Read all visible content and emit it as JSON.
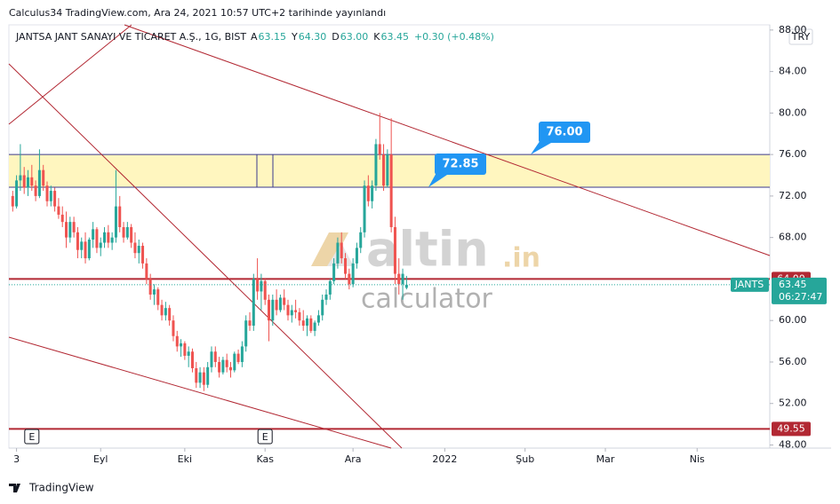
{
  "header": "Calculus34 TradingView.com, Ara 24, 2021 10:57 UTC+2 tarihinde yayınlandı",
  "footer": "TradingView",
  "chart_data": {
    "type": "candlestick",
    "legend": {
      "symbol": "JANTSA JANT SANAYI VE TICARET A.Ş., 1G, BIST",
      "open_label": "A",
      "open": "63.15",
      "high_label": "Y",
      "high": "64.30",
      "low_label": "D",
      "low": "63.00",
      "close_label": "K",
      "close": "63.45",
      "change": "+0.30 (+0.48%)"
    },
    "currency": "TRY",
    "up_color": "#26a69a",
    "down_color": "#ef5350",
    "ylim": [
      47.7,
      88.5
    ],
    "yticks": [
      {
        "value": 88,
        "label": "88.00"
      },
      {
        "value": 84,
        "label": "84.00"
      },
      {
        "value": 80,
        "label": "80.00"
      },
      {
        "value": 76,
        "label": "76.00"
      },
      {
        "value": 72,
        "label": "72.00"
      },
      {
        "value": 68,
        "label": "68.00"
      },
      {
        "value": 60,
        "label": "60.00"
      },
      {
        "value": 56,
        "label": "56.00"
      },
      {
        "value": 52,
        "label": "52.00"
      },
      {
        "value": 48,
        "label": "48.00"
      }
    ],
    "xlim": [
      -1,
      198
    ],
    "xticks": [
      {
        "value": 1,
        "label": "3"
      },
      {
        "value": 23,
        "label": "Eyl"
      },
      {
        "value": 45,
        "label": "Eki"
      },
      {
        "value": 66,
        "label": "Kas"
      },
      {
        "value": 89,
        "label": "Ara"
      },
      {
        "value": 113,
        "label": "2022"
      },
      {
        "value": 134,
        "label": "Şub"
      },
      {
        "value": 155,
        "label": "Mar"
      },
      {
        "value": 179,
        "label": "Nis"
      }
    ],
    "events": [
      {
        "value": 5,
        "label": "E"
      },
      {
        "value": 66,
        "label": "E"
      }
    ],
    "zone": {
      "low": {
        "value": 72.85,
        "label": "72.85"
      },
      "high": {
        "value": 76,
        "label": "76.00"
      },
      "color": "#fff6bf",
      "border": "#3a3a8c",
      "callout_color": "#2196f3"
    },
    "lines": [
      {
        "value": 64,
        "label": "64.00",
        "color": "#b22833"
      },
      {
        "value": 49.55,
        "label": "49.55",
        "color": "#b22833"
      }
    ],
    "last": {
      "name": "JANTS",
      "value": 63.45,
      "label": "63.45",
      "countdown": "06:27:47",
      "color": "#26a69a"
    },
    "ohlc": [
      [
        72,
        72.5,
        70.5,
        71
      ],
      [
        71,
        74,
        70.8,
        73.5
      ],
      [
        73.5,
        77,
        72.5,
        74
      ],
      [
        74,
        74.8,
        72.2,
        72.8
      ],
      [
        72.8,
        74.5,
        72,
        73.8
      ],
      [
        73.8,
        75,
        72.5,
        73
      ],
      [
        73,
        73.5,
        71.5,
        72
      ],
      [
        72,
        76.5,
        71.8,
        74.5
      ],
      [
        74.5,
        75,
        72.5,
        73
      ],
      [
        73,
        73.4,
        71,
        71.5
      ],
      [
        71.5,
        73,
        71,
        72.5
      ],
      [
        72.5,
        72.8,
        70.5,
        71
      ],
      [
        71,
        71.8,
        69.8,
        70.2
      ],
      [
        70.2,
        71,
        69,
        69.5
      ],
      [
        69.5,
        70.5,
        67,
        68
      ],
      [
        68,
        70,
        67.5,
        69.5
      ],
      [
        69.5,
        70,
        68,
        68.5
      ],
      [
        68.5,
        69,
        66,
        66.8
      ],
      [
        66.8,
        68,
        66,
        67.6
      ],
      [
        67.6,
        68.5,
        65.5,
        66
      ],
      [
        66,
        68,
        65.8,
        67.8
      ],
      [
        67.8,
        69.5,
        67,
        68.8
      ],
      [
        68.8,
        69,
        66.5,
        67
      ],
      [
        67,
        68,
        66.2,
        67.5
      ],
      [
        67.5,
        69,
        67,
        68.5
      ],
      [
        68.5,
        69.2,
        67,
        67.5
      ],
      [
        67.5,
        68.5,
        66.8,
        68
      ],
      [
        68,
        74.5,
        67.5,
        71
      ],
      [
        71,
        72,
        68.5,
        69
      ],
      [
        69,
        69.5,
        67.5,
        68
      ],
      [
        68,
        69.5,
        67.8,
        69
      ],
      [
        69,
        69.3,
        67,
        67.5
      ],
      [
        67.5,
        68.5,
        66,
        66.5
      ],
      [
        66.5,
        67.8,
        65.5,
        67.2
      ],
      [
        67.2,
        67.5,
        65,
        65.5
      ],
      [
        65.5,
        66,
        63.5,
        64
      ],
      [
        64,
        64.5,
        62,
        62.5
      ],
      [
        62.5,
        63.5,
        61.5,
        63
      ],
      [
        63,
        63.2,
        61,
        61.5
      ],
      [
        61.5,
        62,
        60,
        60.5
      ],
      [
        60.5,
        61.8,
        60,
        61.2
      ],
      [
        61.2,
        61.5,
        59.5,
        60
      ],
      [
        60,
        60.5,
        58,
        58.5
      ],
      [
        58.5,
        59,
        57,
        57.5
      ],
      [
        57.5,
        58.2,
        56.5,
        57.8
      ],
      [
        57.8,
        58,
        56.2,
        56.6
      ],
      [
        56.6,
        57.5,
        55.5,
        57
      ],
      [
        57,
        57.3,
        55,
        55.4
      ],
      [
        55.4,
        56,
        53.5,
        54
      ],
      [
        54,
        55.5,
        53.5,
        55
      ],
      [
        55,
        55.5,
        53.2,
        53.8
      ],
      [
        53.8,
        56,
        53.5,
        55.5
      ],
      [
        55.5,
        57.5,
        55,
        57
      ],
      [
        57,
        57.5,
        55.5,
        56
      ],
      [
        56,
        56.5,
        54.5,
        55
      ],
      [
        55,
        56.5,
        54.8,
        56.2
      ],
      [
        56.2,
        56.8,
        55,
        55.5
      ],
      [
        55.5,
        56,
        54.5,
        55.2
      ],
      [
        55.2,
        57,
        55,
        56.8
      ],
      [
        56.8,
        57.2,
        55.8,
        56
      ],
      [
        56,
        58,
        55.5,
        57.5
      ],
      [
        57.5,
        60.5,
        57,
        60
      ],
      [
        60,
        60.8,
        59,
        59.5
      ],
      [
        59.5,
        64.5,
        59,
        64
      ],
      [
        64,
        66,
        62,
        62.8
      ],
      [
        62.8,
        64.5,
        61,
        63.8
      ],
      [
        63.8,
        64,
        61.5,
        62
      ],
      [
        62,
        62.5,
        58,
        60
      ],
      [
        60,
        62.5,
        59.5,
        62
      ],
      [
        62,
        63,
        60.5,
        61
      ],
      [
        61,
        62.5,
        60.8,
        62.2
      ],
      [
        62.2,
        63,
        61,
        61.5
      ],
      [
        61.5,
        62,
        60,
        60.5
      ],
      [
        60.5,
        61.5,
        59.8,
        61
      ],
      [
        61,
        62,
        60.2,
        60.8
      ],
      [
        60.8,
        61.2,
        59.5,
        60
      ],
      [
        60,
        61,
        59,
        59.5
      ],
      [
        59.5,
        60.5,
        58.5,
        60.2
      ],
      [
        60.2,
        60.5,
        58.8,
        59
      ],
      [
        59,
        60,
        58.5,
        59.8
      ],
      [
        59.8,
        61,
        59.5,
        60.5
      ],
      [
        60.5,
        62.5,
        60,
        62
      ],
      [
        62,
        63,
        61.5,
        62.5
      ],
      [
        62.5,
        64,
        62,
        63.8
      ],
      [
        63.8,
        66,
        63.5,
        65.5
      ],
      [
        65.5,
        68,
        65,
        67.5
      ],
      [
        67.5,
        68.5,
        65.5,
        66
      ],
      [
        66,
        66.5,
        64,
        64.5
      ],
      [
        64.5,
        65,
        63,
        63.5
      ],
      [
        63.5,
        66,
        63.2,
        65.5
      ],
      [
        65.5,
        67.5,
        65,
        67
      ],
      [
        67,
        69,
        66.5,
        68.5
      ],
      [
        68.5,
        73.5,
        68,
        73
      ],
      [
        73,
        74,
        71,
        71.5
      ],
      [
        71.5,
        73.5,
        70.8,
        73
      ],
      [
        73,
        77.5,
        72.5,
        77
      ],
      [
        77,
        80,
        75.5,
        76
      ],
      [
        76,
        77,
        72.5,
        73
      ],
      [
        73,
        76.5,
        72.8,
        76
      ],
      [
        76,
        79.5,
        68.5,
        69
      ],
      [
        69,
        70,
        63.5,
        64.5
      ],
      [
        64.5,
        66,
        62.5,
        63.5
      ],
      [
        63.5,
        65,
        62,
        64.5
      ],
      [
        63.15,
        64.3,
        63,
        63.45
      ]
    ]
  },
  "watermark": {
    "brand": "altin",
    "tld": ".in",
    "sub": "calculator"
  }
}
